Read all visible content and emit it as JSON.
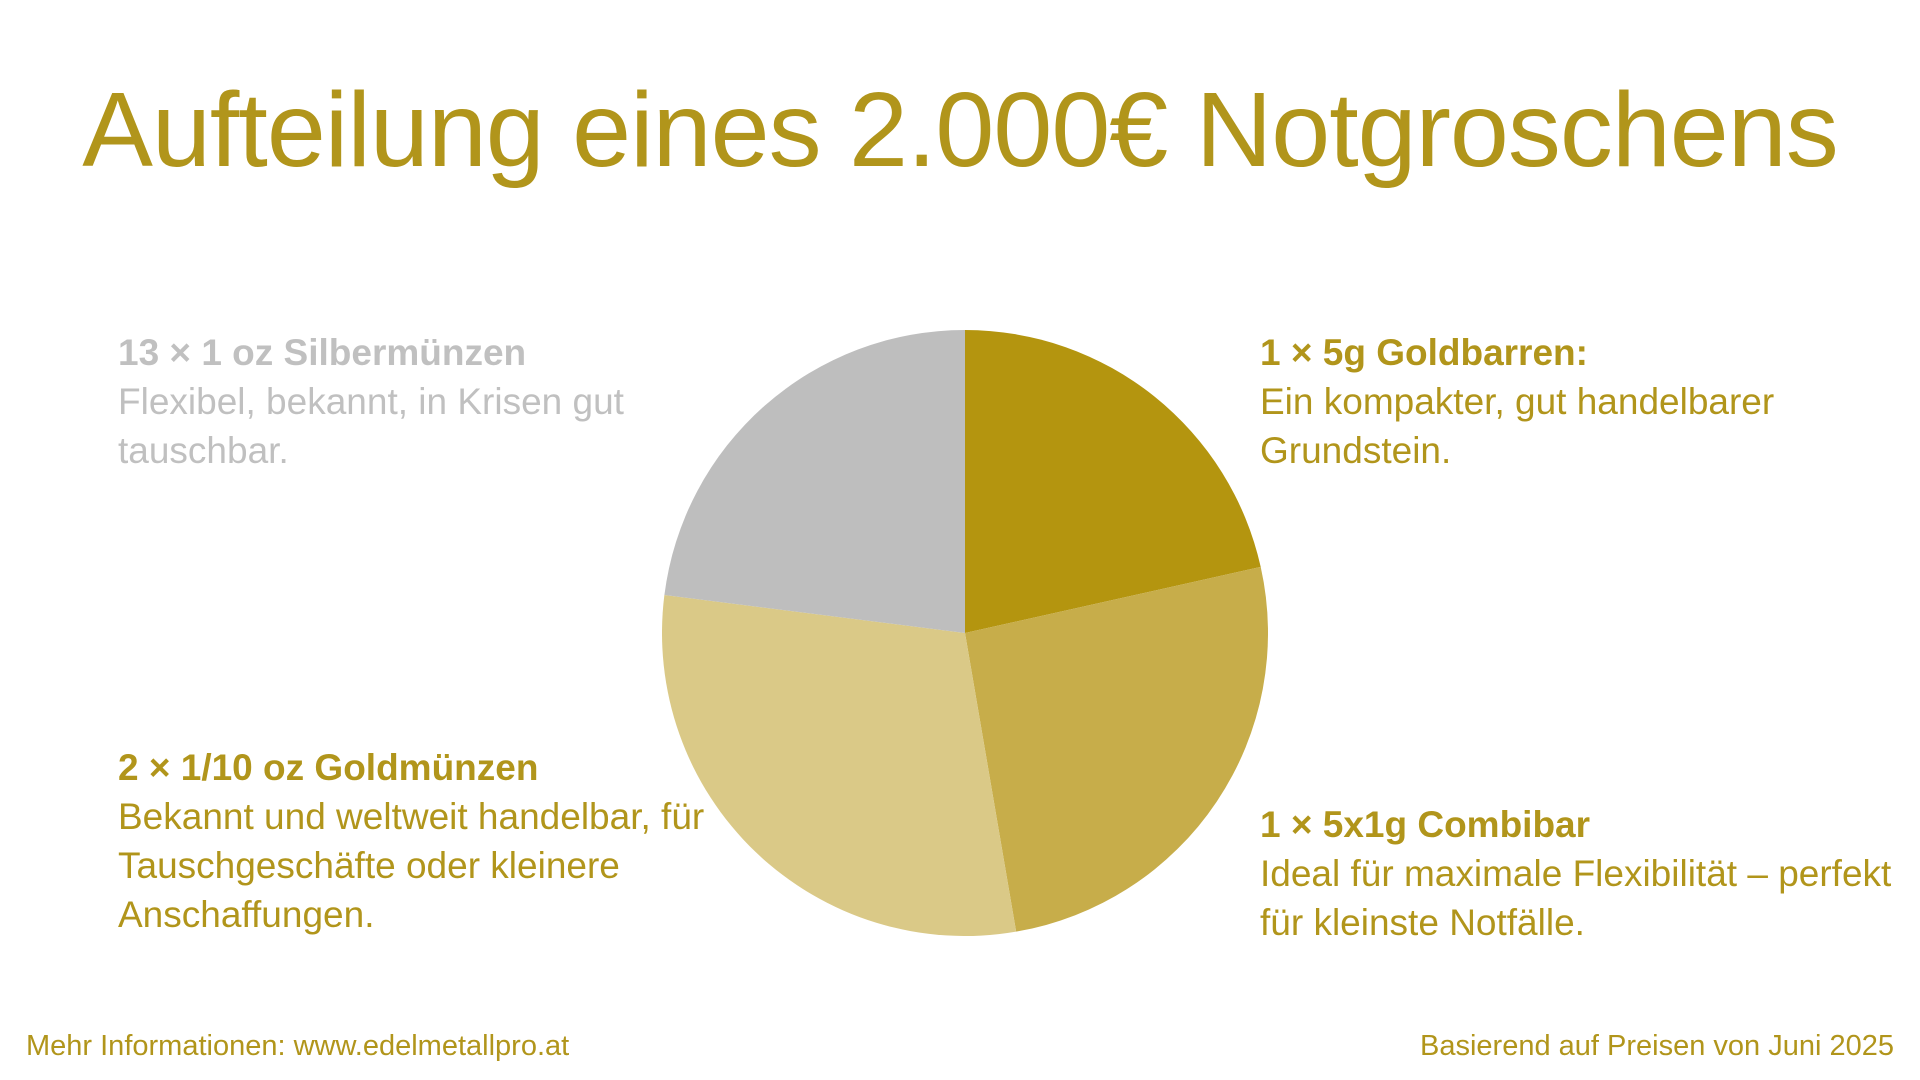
{
  "title": "Aufteilung eines 2.000€ Notgroschens",
  "chart_data": {
    "type": "pie",
    "start_angle_deg": 0,
    "direction": "clockwise",
    "slices": [
      {
        "label": "1 × 5g Goldbarren:",
        "value": 21.5,
        "color": "#b4950f"
      },
      {
        "label": "1 × 5x1g Combibar",
        "value": 25.8,
        "color": "#c7ad4a"
      },
      {
        "label": "2 × 1/10 oz Goldmünzen",
        "value": 29.7,
        "color": "#dac987"
      },
      {
        "label": "13 × 1 oz Silbermünzen",
        "value": 23.0,
        "color": "#bebebe"
      }
    ]
  },
  "labels": {
    "silver": {
      "head": "13 × 1 oz Silbermünzen",
      "desc": "Flexibel, bekannt, in Krisen gut tauschbar."
    },
    "goldbar": {
      "head": "1 × 5g Goldbarren:",
      "desc": "Ein kompakter, gut handelbarer Grundstein."
    },
    "coins": {
      "head": "2 × 1/10 oz Goldmünzen",
      "desc": "Bekannt und weltweit handelbar, für Tauschgeschäfte oder kleinere Anschaffungen."
    },
    "combi": {
      "head": "1 × 5x1g Combibar",
      "desc": "Ideal für maximale Flexibilität – perfekt für kleinste Notfälle."
    }
  },
  "footer": {
    "left": "Mehr Informationen: www.edelmetallpro.at",
    "right": "Basierend auf Preisen von Juni 2025"
  }
}
